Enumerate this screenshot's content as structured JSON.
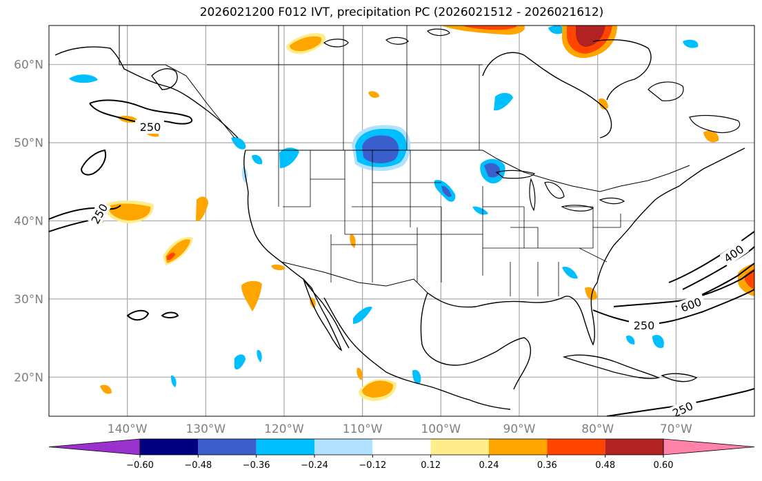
{
  "title": "2026021200 F012 IVT, precipitation PC (2026021512 - 2026021612)",
  "map": {
    "lon_range": [
      -150,
      -60
    ],
    "lat_range": [
      15,
      65
    ],
    "lat_gridlines": [
      20,
      30,
      40,
      50,
      60
    ],
    "lon_gridlines": [
      -140,
      -130,
      -120,
      -110,
      -100,
      -90,
      -80,
      -70
    ],
    "lat_labels": [
      "20°N",
      "30°N",
      "40°N",
      "50°N",
      "60°N"
    ],
    "lon_labels": [
      "140°W",
      "130°W",
      "120°W",
      "110°W",
      "100°W",
      "90°W",
      "80°W",
      "70°W"
    ],
    "grid": true
  },
  "ivt_contours": {
    "levels": [
      250,
      400,
      600
    ],
    "labels": [
      "250",
      "250",
      "250",
      "250",
      "400",
      "600"
    ]
  },
  "colorbar": {
    "ticks": [
      "−0.60",
      "−0.48",
      "−0.36",
      "−0.24",
      "−0.12",
      "0.12",
      "0.24",
      "0.36",
      "0.48",
      "0.60"
    ],
    "colors": [
      "#9932cc",
      "#000080",
      "#3a5fcd",
      "#00bfff",
      "#b0e2ff",
      "#ffffff",
      "#ffec8b",
      "#ffa500",
      "#ff4500",
      "#b22222",
      "#ff82ab"
    ],
    "extend": "both"
  },
  "colors": {
    "neg_light": "#b0e2ff",
    "neg_mid": "#00bfff",
    "neg_strong": "#3a5fcd",
    "pos_light": "#ffec8b",
    "pos_mid": "#ffa500",
    "pos_strong": "#ff4500",
    "pos_dark": "#b22222"
  }
}
